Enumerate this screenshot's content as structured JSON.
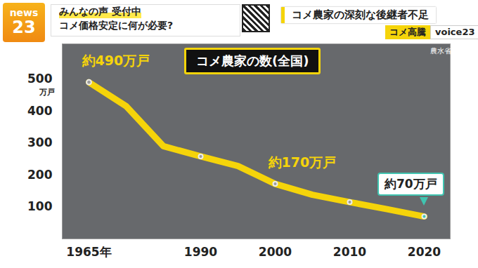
{
  "header": {
    "logo": [
      "news",
      "23"
    ],
    "call": "みんなの声 受付中",
    "question": "コメ価格安定に何が必要?",
    "headline": "コメ農家の深刻な後継者不足",
    "tags": [
      "コメ高騰",
      "voice23"
    ]
  },
  "chart_data": {
    "type": "line",
    "title": "コメ農家の数(全国)",
    "source": "農水省",
    "y_label": "万戸",
    "categories": [
      "1965年",
      null,
      null,
      "1990",
      null,
      "2000",
      null,
      "2010",
      null,
      "2020"
    ],
    "values": [
      490,
      415,
      290,
      258,
      228,
      172,
      138,
      115,
      93,
      70
    ],
    "color": "#f5d40a",
    "marker": "circle",
    "grid": false,
    "ylim": [
      0,
      610
    ],
    "yticks": [
      100,
      200,
      300,
      400,
      500
    ],
    "annotations": [
      {
        "at": "1965年",
        "text": "約490万戸"
      },
      {
        "at": "2000",
        "text": "約170万戸"
      },
      {
        "at": "2020",
        "text": "約70万戸"
      }
    ]
  }
}
